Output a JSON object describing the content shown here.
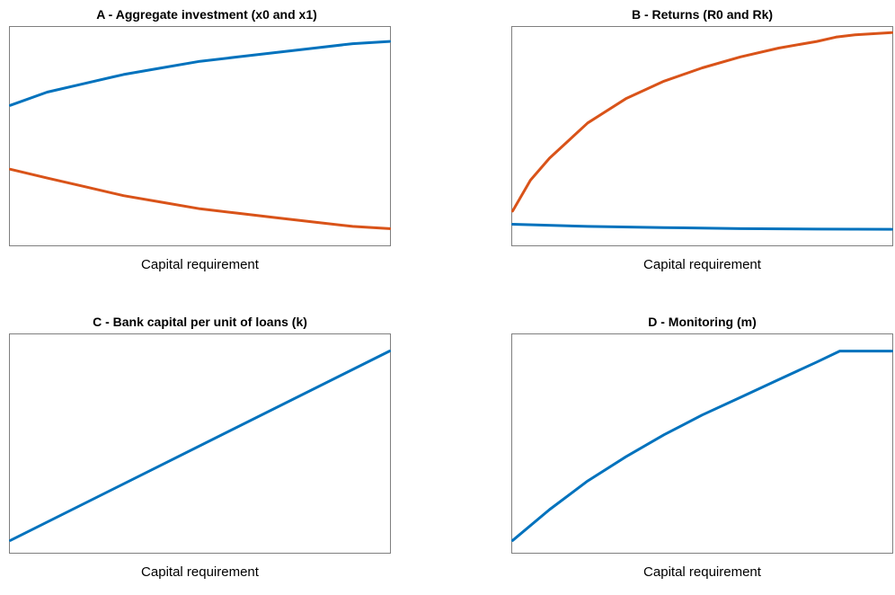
{
  "colors": {
    "blue": "#0072BD",
    "orange": "#D95319",
    "axis": "#7f7f7f"
  },
  "chart_data": [
    {
      "id": "A",
      "type": "line",
      "title": "A - Aggregate investment (x0 and x1)",
      "xlabel": "Capital requirement",
      "ylabel": "",
      "xlim": [
        0,
        1
      ],
      "ylim": [
        0,
        1
      ],
      "grid": false,
      "legend": "none",
      "series": [
        {
          "color": "#0072BD",
          "x": [
            0,
            0.1,
            0.2,
            0.3,
            0.4,
            0.5,
            0.6,
            0.7,
            0.8,
            0.9,
            1.0
          ],
          "y": [
            0.64,
            0.7,
            0.74,
            0.78,
            0.81,
            0.84,
            0.86,
            0.88,
            0.9,
            0.92,
            0.93
          ]
        },
        {
          "color": "#D95319",
          "x": [
            0,
            0.1,
            0.2,
            0.3,
            0.4,
            0.5,
            0.6,
            0.7,
            0.8,
            0.9,
            1.0
          ],
          "y": [
            0.35,
            0.31,
            0.27,
            0.23,
            0.2,
            0.17,
            0.15,
            0.13,
            0.11,
            0.09,
            0.08
          ]
        }
      ]
    },
    {
      "id": "B",
      "type": "line",
      "title": "B - Returns (R0 and Rk)",
      "xlabel": "Capital requirement",
      "ylabel": "",
      "xlim": [
        0,
        1
      ],
      "ylim": [
        0,
        1
      ],
      "grid": false,
      "legend": "none",
      "series": [
        {
          "color": "#0072BD",
          "x": [
            0,
            0.2,
            0.4,
            0.6,
            0.8,
            1.0
          ],
          "y": [
            0.1,
            0.09,
            0.085,
            0.08,
            0.078,
            0.077
          ]
        },
        {
          "color": "#D95319",
          "x": [
            0,
            0.05,
            0.1,
            0.2,
            0.3,
            0.4,
            0.5,
            0.6,
            0.7,
            0.8,
            0.85,
            0.9,
            1.0
          ],
          "y": [
            0.16,
            0.3,
            0.4,
            0.56,
            0.67,
            0.75,
            0.81,
            0.86,
            0.9,
            0.93,
            0.95,
            0.96,
            0.97
          ]
        }
      ]
    },
    {
      "id": "C",
      "type": "line",
      "title": "C - Bank capital per unit of loans (k)",
      "xlabel": "Capital requirement",
      "ylabel": "",
      "xlim": [
        0,
        1
      ],
      "ylim": [
        0,
        1
      ],
      "grid": false,
      "legend": "none",
      "series": [
        {
          "color": "#0072BD",
          "x": [
            0,
            1.0
          ],
          "y": [
            0.06,
            0.92
          ]
        }
      ]
    },
    {
      "id": "D",
      "type": "line",
      "title": "D - Monitoring (m)",
      "xlabel": "Capital requirement",
      "ylabel": "",
      "xlim": [
        0,
        1
      ],
      "ylim": [
        0,
        1
      ],
      "grid": false,
      "legend": "none",
      "series": [
        {
          "color": "#0072BD",
          "x": [
            0,
            0.1,
            0.2,
            0.3,
            0.4,
            0.5,
            0.6,
            0.7,
            0.8,
            0.86,
            1.0
          ],
          "y": [
            0.06,
            0.2,
            0.33,
            0.44,
            0.54,
            0.63,
            0.71,
            0.79,
            0.87,
            0.92,
            0.92
          ]
        }
      ]
    }
  ]
}
